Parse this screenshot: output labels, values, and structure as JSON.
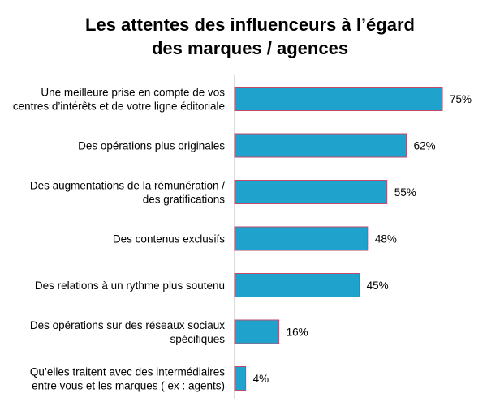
{
  "chart_data": {
    "type": "bar",
    "orientation": "horizontal",
    "title_lines": [
      "Les attentes des influenceurs à l’égard",
      "des marques / agences"
    ],
    "categories": [
      [
        "Une meilleure prise en compte de vos",
        "centres d’intérêts et de votre ligne éditoriale"
      ],
      [
        "Des opérations plus originales"
      ],
      [
        "Des augmentations de la rémunération /",
        "des gratifications"
      ],
      [
        "Des contenus exclusifs"
      ],
      [
        "Des relations à un rythme plus soutenu"
      ],
      [
        "Des opérations sur des réseaux sociaux",
        "spécifiques"
      ],
      [
        "Qu’elles traitent avec des intermédiaires",
        "entre vous et les marques ( ex : agents)"
      ]
    ],
    "values": [
      75,
      62,
      55,
      48,
      45,
      16,
      4
    ],
    "value_labels": [
      "75%",
      "62%",
      "55%",
      "48%",
      "45%",
      "16%",
      "4%"
    ],
    "xlim": [
      0,
      100
    ],
    "bar_color": "#1fa3cc",
    "bar_edge_color": "#c24b6a",
    "axis_color": "#d0d0d0",
    "grid": false,
    "legend": "none"
  }
}
